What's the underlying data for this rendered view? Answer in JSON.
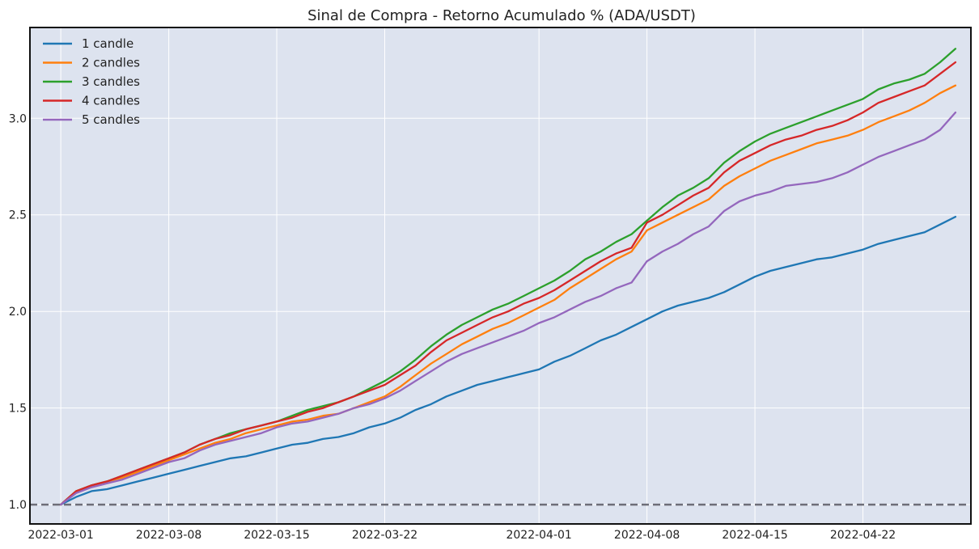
{
  "chart_data": {
    "type": "line",
    "title": "Sinal de Compra - Retorno Acumulado % (ADA/USDT)",
    "xlabel": "",
    "ylabel": "",
    "x_axis_type": "date",
    "xlim": [
      "2022-02-27",
      "2022-04-29"
    ],
    "ylim": [
      0.9,
      3.47
    ],
    "x_ticks": [
      "2022-03-01",
      "2022-03-08",
      "2022-03-15",
      "2022-03-22",
      "2022-04-01",
      "2022-04-08",
      "2022-04-15",
      "2022-04-22"
    ],
    "y_ticks": [
      "1.0",
      "1.5",
      "2.0",
      "2.5",
      "3.0"
    ],
    "grid": true,
    "legend_position": "top-left",
    "baseline": {
      "y": 1.0,
      "style": "dashed",
      "color": "#6e6e78"
    },
    "x": [
      "2022-03-01",
      "2022-03-02",
      "2022-03-03",
      "2022-03-04",
      "2022-03-05",
      "2022-03-06",
      "2022-03-07",
      "2022-03-08",
      "2022-03-09",
      "2022-03-10",
      "2022-03-11",
      "2022-03-12",
      "2022-03-13",
      "2022-03-14",
      "2022-03-15",
      "2022-03-16",
      "2022-03-17",
      "2022-03-18",
      "2022-03-19",
      "2022-03-20",
      "2022-03-21",
      "2022-03-22",
      "2022-03-23",
      "2022-03-24",
      "2022-03-25",
      "2022-03-26",
      "2022-03-27",
      "2022-03-28",
      "2022-03-29",
      "2022-03-30",
      "2022-03-31",
      "2022-04-01",
      "2022-04-02",
      "2022-04-03",
      "2022-04-04",
      "2022-04-05",
      "2022-04-06",
      "2022-04-07",
      "2022-04-08",
      "2022-04-09",
      "2022-04-10",
      "2022-04-11",
      "2022-04-12",
      "2022-04-13",
      "2022-04-14",
      "2022-04-15",
      "2022-04-16",
      "2022-04-17",
      "2022-04-18",
      "2022-04-19",
      "2022-04-20",
      "2022-04-21",
      "2022-04-22",
      "2022-04-23",
      "2022-04-24",
      "2022-04-25",
      "2022-04-26",
      "2022-04-27",
      "2022-04-28"
    ],
    "series": [
      {
        "name": "1 candle",
        "color": "#1f77b4",
        "values": [
          1.0,
          1.04,
          1.07,
          1.08,
          1.1,
          1.12,
          1.14,
          1.16,
          1.18,
          1.2,
          1.22,
          1.24,
          1.25,
          1.27,
          1.29,
          1.31,
          1.32,
          1.34,
          1.35,
          1.37,
          1.4,
          1.42,
          1.45,
          1.49,
          1.52,
          1.56,
          1.59,
          1.62,
          1.64,
          1.66,
          1.68,
          1.7,
          1.74,
          1.77,
          1.81,
          1.85,
          1.88,
          1.92,
          1.96,
          2.0,
          2.03,
          2.05,
          2.07,
          2.1,
          2.14,
          2.18,
          2.21,
          2.23,
          2.25,
          2.27,
          2.28,
          2.3,
          2.32,
          2.35,
          2.37,
          2.39,
          2.41,
          2.45,
          2.49
        ]
      },
      {
        "name": "2 candles",
        "color": "#ff7f0e",
        "values": [
          1.0,
          1.07,
          1.1,
          1.12,
          1.14,
          1.17,
          1.2,
          1.23,
          1.26,
          1.29,
          1.32,
          1.34,
          1.37,
          1.39,
          1.41,
          1.43,
          1.44,
          1.46,
          1.47,
          1.5,
          1.53,
          1.56,
          1.61,
          1.67,
          1.73,
          1.78,
          1.83,
          1.87,
          1.91,
          1.94,
          1.98,
          2.02,
          2.06,
          2.12,
          2.17,
          2.22,
          2.27,
          2.31,
          2.42,
          2.46,
          2.5,
          2.54,
          2.58,
          2.65,
          2.7,
          2.74,
          2.78,
          2.81,
          2.84,
          2.87,
          2.89,
          2.91,
          2.94,
          2.98,
          3.01,
          3.04,
          3.08,
          3.13,
          3.17
        ]
      },
      {
        "name": "3 candles",
        "color": "#2ca02c",
        "values": [
          1.0,
          1.07,
          1.1,
          1.12,
          1.15,
          1.18,
          1.21,
          1.24,
          1.27,
          1.31,
          1.34,
          1.37,
          1.39,
          1.41,
          1.43,
          1.46,
          1.49,
          1.51,
          1.53,
          1.56,
          1.6,
          1.64,
          1.69,
          1.75,
          1.82,
          1.88,
          1.93,
          1.97,
          2.01,
          2.04,
          2.08,
          2.12,
          2.16,
          2.21,
          2.27,
          2.31,
          2.36,
          2.4,
          2.47,
          2.54,
          2.6,
          2.64,
          2.69,
          2.77,
          2.83,
          2.88,
          2.92,
          2.95,
          2.98,
          3.01,
          3.04,
          3.07,
          3.1,
          3.15,
          3.18,
          3.2,
          3.23,
          3.29,
          3.36
        ]
      },
      {
        "name": "4 candles",
        "color": "#d62728",
        "values": [
          1.0,
          1.07,
          1.1,
          1.12,
          1.15,
          1.18,
          1.21,
          1.24,
          1.27,
          1.31,
          1.34,
          1.36,
          1.39,
          1.41,
          1.43,
          1.45,
          1.48,
          1.5,
          1.53,
          1.56,
          1.59,
          1.62,
          1.67,
          1.72,
          1.79,
          1.85,
          1.89,
          1.93,
          1.97,
          2.0,
          2.04,
          2.07,
          2.11,
          2.16,
          2.21,
          2.26,
          2.3,
          2.33,
          2.46,
          2.5,
          2.55,
          2.6,
          2.64,
          2.72,
          2.78,
          2.82,
          2.86,
          2.89,
          2.91,
          2.94,
          2.96,
          2.99,
          3.03,
          3.08,
          3.11,
          3.14,
          3.17,
          3.23,
          3.29
        ]
      },
      {
        "name": "5 candles",
        "color": "#9467bd",
        "values": [
          1.0,
          1.06,
          1.09,
          1.11,
          1.13,
          1.16,
          1.19,
          1.22,
          1.24,
          1.28,
          1.31,
          1.33,
          1.35,
          1.37,
          1.4,
          1.42,
          1.43,
          1.45,
          1.47,
          1.5,
          1.52,
          1.55,
          1.59,
          1.64,
          1.69,
          1.74,
          1.78,
          1.81,
          1.84,
          1.87,
          1.9,
          1.94,
          1.97,
          2.01,
          2.05,
          2.08,
          2.12,
          2.15,
          2.26,
          2.31,
          2.35,
          2.4,
          2.44,
          2.52,
          2.57,
          2.6,
          2.62,
          2.65,
          2.66,
          2.67,
          2.69,
          2.72,
          2.76,
          2.8,
          2.83,
          2.86,
          2.89,
          2.94,
          3.03
        ]
      }
    ]
  }
}
